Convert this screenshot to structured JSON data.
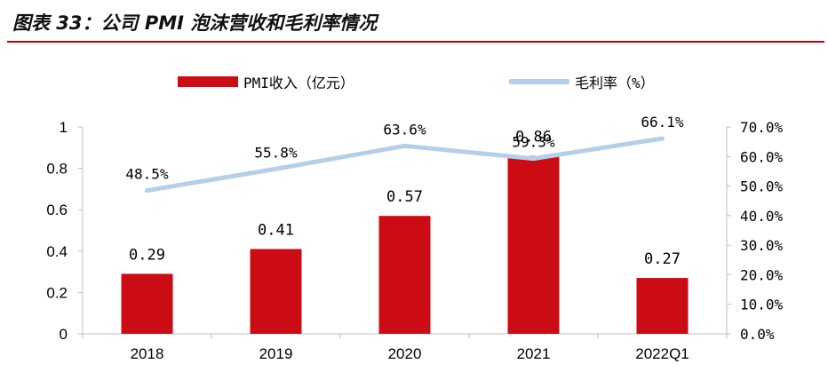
{
  "figure_title": "图表 33：公司 PMI 泡沫营收和毛利率情况",
  "colors": {
    "bar": "#cc0c14",
    "line": "#b4d0e8",
    "rule": "#c00000",
    "axis": "#bfbfbf"
  },
  "chart_data": {
    "type": "bar+line",
    "categories": [
      "2018",
      "2019",
      "2020",
      "2021",
      "2022Q1"
    ],
    "series": [
      {
        "name": "PMI收入（亿元）",
        "kind": "bar",
        "axis": "left",
        "values": [
          0.29,
          0.41,
          0.57,
          0.86,
          0.27
        ],
        "labels": [
          "0.29",
          "0.41",
          "0.57",
          "0.86",
          "0.27"
        ]
      },
      {
        "name": "毛利率（%）",
        "kind": "line",
        "axis": "right",
        "values": [
          48.5,
          55.8,
          63.6,
          59.3,
          66.1
        ],
        "labels": [
          "48.5%",
          "55.8%",
          "63.6%",
          "59.3%",
          "66.1%"
        ]
      }
    ],
    "y_left": {
      "min": 0,
      "max": 1,
      "ticks": [
        "0",
        "0.2",
        "0.4",
        "0.6",
        "0.8",
        "1"
      ],
      "tick_values": [
        0,
        0.2,
        0.4,
        0.6,
        0.8,
        1
      ]
    },
    "y_right": {
      "min": 0,
      "max": 70,
      "ticks": [
        "0.0%",
        "10.0%",
        "20.0%",
        "30.0%",
        "40.0%",
        "50.0%",
        "60.0%",
        "70.0%"
      ],
      "tick_values": [
        0,
        10,
        20,
        30,
        40,
        50,
        60,
        70
      ]
    },
    "legend_position": "top",
    "grid": false
  }
}
